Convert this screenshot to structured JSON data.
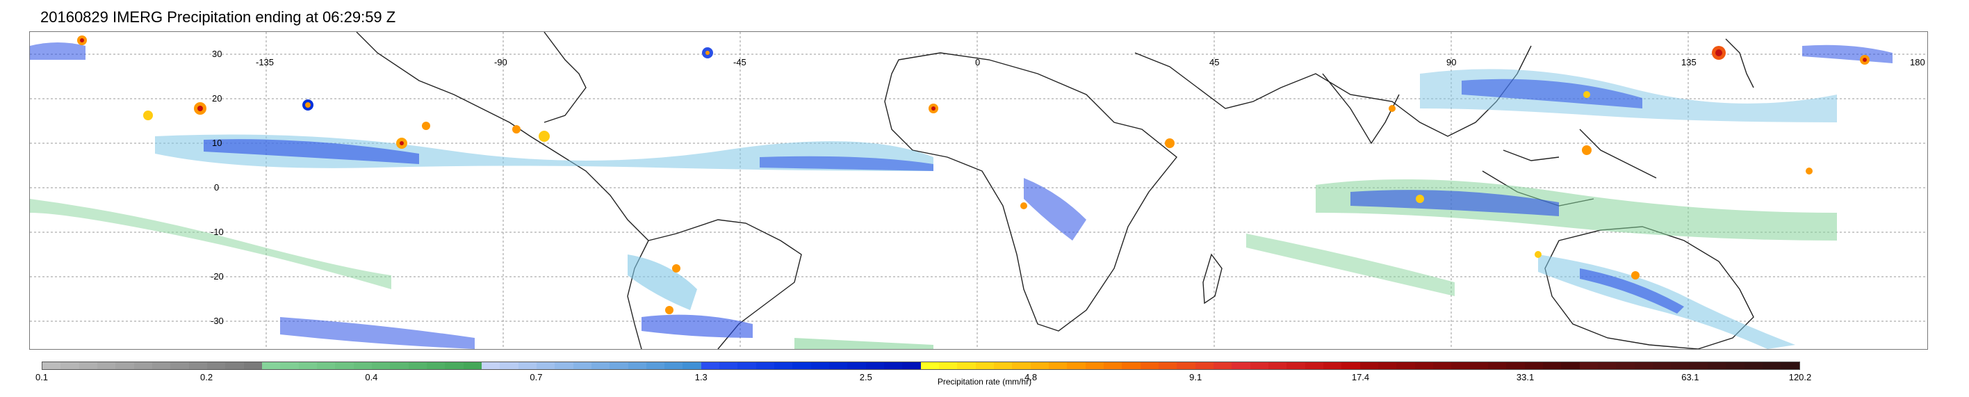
{
  "title": "20160829 IMERG Precipitation ending at 06:29:59 Z",
  "map": {
    "lat_labels": [
      "30",
      "20",
      "10",
      "0",
      "-10",
      "-20",
      "-30"
    ],
    "lon_labels": [
      "-135",
      "-90",
      "-45",
      "0",
      "45",
      "90",
      "135",
      "180"
    ]
  },
  "colorbar": {
    "label": "Precipitation rate (mm/hr)",
    "ticks": [
      "0.1",
      "0.2",
      "0.4",
      "0.7",
      "1.3",
      "2.5",
      "4.8",
      "9.1",
      "17.4",
      "33.1",
      "63.1",
      "120.2"
    ],
    "colors": [
      "#bcbcbc",
      "#b6b6b6",
      "#b0b0b0",
      "#aaaaaa",
      "#a4a4a4",
      "#9e9e9e",
      "#989898",
      "#929292",
      "#8c8c8c",
      "#868686",
      "#808080",
      "#7a7a7a",
      "#86d39a",
      "#80cf94",
      "#7acb8e",
      "#74c788",
      "#6ec382",
      "#68bf7c",
      "#62bb76",
      "#5cb770",
      "#56b36a",
      "#50af64",
      "#4aab5e",
      "#44a758",
      "#c4d2f6",
      "#b8ccf3",
      "#acc6f0",
      "#a0c0ed",
      "#94baea",
      "#88b4e7",
      "#7caee4",
      "#70a8e1",
      "#64a2de",
      "#589cdb",
      "#4c96d8",
      "#4090d5",
      "#2a4ff0",
      "#2048ec",
      "#1842e8",
      "#103ce4",
      "#0836e0",
      "#0030dc",
      "#002bd6",
      "#0026d0",
      "#0021ca",
      "#001cc4",
      "#0017be",
      "#0012b8",
      "#ffff20",
      "#fff21c",
      "#ffe518",
      "#ffd814",
      "#ffcb10",
      "#ffbe0c",
      "#ffb108",
      "#ffa404",
      "#ff9700",
      "#fd8a00",
      "#fb7d00",
      "#f97000",
      "#f46008",
      "#f05610",
      "#ec4c18",
      "#e84220",
      "#e43828",
      "#e02e30",
      "#da2828",
      "#d42222",
      "#ce1c1c",
      "#c81616",
      "#c21010",
      "#bc0a0a",
      "#a00808",
      "#980808",
      "#900808",
      "#880808",
      "#800808",
      "#780808",
      "#700808",
      "#680808",
      "#600808",
      "#580808",
      "#500808",
      "#480808",
      "#5a1010",
      "#561010",
      "#521010",
      "#4e1010",
      "#4a1010",
      "#461010",
      "#421010",
      "#3e1010",
      "#3a1010",
      "#361010",
      "#321010",
      "#2e1010"
    ]
  }
}
